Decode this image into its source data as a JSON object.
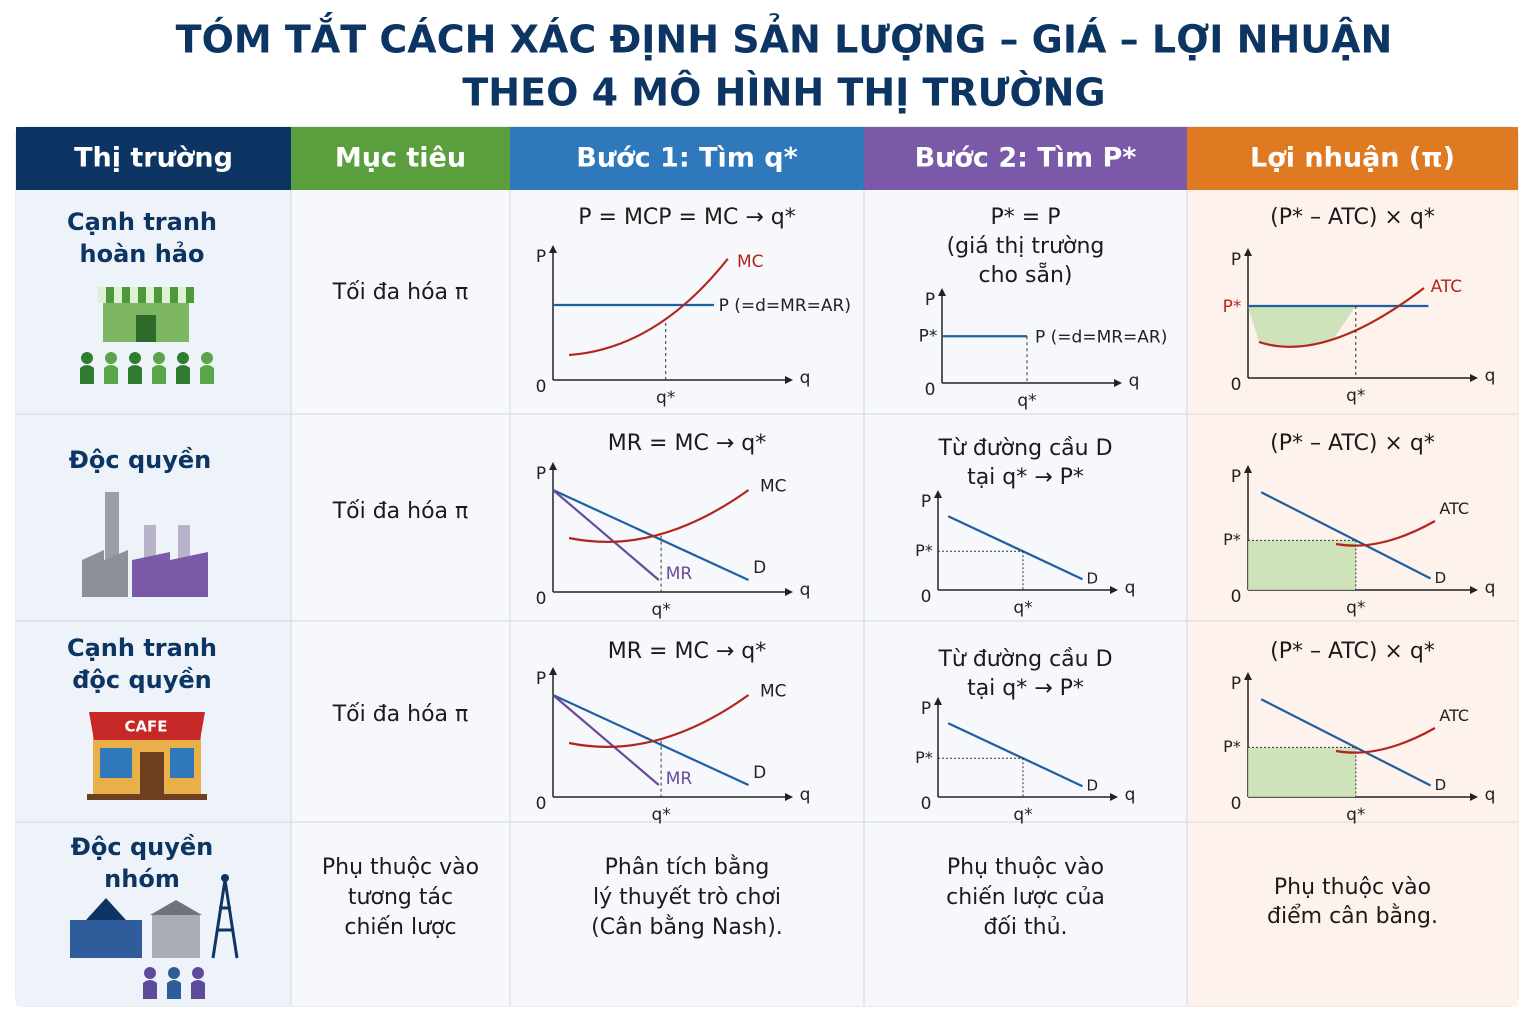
{
  "title": [
    "TÓM TẮT CÁCH XÁC ĐỊNH SẢN LƯỢNG – GIÁ – LỢI NHUẬN",
    "THEO 4 MÔ HÌNH THỊ TRƯỜNG"
  ],
  "header": [
    "Thị trường",
    "Mục tiêu",
    "Bước 1: Tìm q*",
    "Bước 2: Tìm P*",
    "Lợi nhuận (π)"
  ],
  "rows": [
    {
      "market": [
        "Cạnh tranh",
        "hoàn hảo"
      ],
      "goal": [
        "Tối đa hóa π"
      ],
      "step1": {
        "text": [
          "P = MCP = MC → q*"
        ],
        "graph": {
          "kind": "flat-mc",
          "labels": {
            "p": "P",
            "origin": "0",
            "q": "q",
            "qstar": "q*",
            "mc": "MC",
            "price": "P (=d=MR=AR)"
          }
        }
      },
      "step2": {
        "text": [
          "P* = P",
          "(giá thị trường",
          "cho sẵn)"
        ],
        "graph": {
          "kind": "flat",
          "labels": {
            "p": "P",
            "origin": "0",
            "q": "q",
            "qstar": "q*",
            "pstar": "P*",
            "price": "P (=d=MR=AR)"
          }
        }
      },
      "profit": {
        "text": [
          "(P* – ATC) × q*"
        ],
        "graph": {
          "kind": "flat-atc",
          "labels": {
            "p": "P",
            "origin": "0",
            "q": "q",
            "qstar": "q*",
            "pstar": "P*",
            "atc": "ATC"
          }
        }
      }
    },
    {
      "market": [
        "Độc quyền"
      ],
      "goal": [
        "Tối đa hóa π"
      ],
      "step1": {
        "text": [
          "MR = MC → q*"
        ],
        "graph": {
          "kind": "mr-mc",
          "labels": {
            "p": "P",
            "origin": "0",
            "q": "q",
            "qstar": "q*",
            "mc": "MC",
            "mr": "MR",
            "d": "D"
          }
        }
      },
      "step2": {
        "text": [
          "Từ đường cầu D",
          "tại q* → P*"
        ],
        "graph": {
          "kind": "demand",
          "labels": {
            "p": "P",
            "origin": "0",
            "q": "q",
            "qstar": "q*",
            "pstar": "P*",
            "d": "D"
          }
        }
      },
      "profit": {
        "text": [
          "(P* – ATC) × q*"
        ],
        "graph": {
          "kind": "demand-atc",
          "labels": {
            "p": "P",
            "origin": "0",
            "q": "q",
            "qstar": "q*",
            "pstar": "P*",
            "atc": "ATC",
            "d": "D"
          }
        }
      }
    },
    {
      "market": [
        "Cạnh tranh",
        "độc quyền"
      ],
      "icon_label": "CAFE",
      "goal": [
        "Tối đa hóa π"
      ],
      "step1": {
        "text": [
          "MR = MC  → q*"
        ],
        "graph": {
          "kind": "mr-mc",
          "labels": {
            "p": "P",
            "origin": "0",
            "q": "q",
            "qstar": "q*",
            "mc": "MC",
            "mr": "MR",
            "d": "D"
          }
        }
      },
      "step2": {
        "text": [
          "Từ đường cầu D",
          "tại q* → P*"
        ],
        "graph": {
          "kind": "demand",
          "labels": {
            "p": "P",
            "origin": "0",
            "q": "q",
            "qstar": "q*",
            "pstar": "P*",
            "d": "D"
          }
        }
      },
      "profit": {
        "text": [
          "(P* – ATC) × q*"
        ],
        "graph": {
          "kind": "demand-atc",
          "labels": {
            "p": "P",
            "origin": "0",
            "q": "q",
            "qstar": "q*",
            "pstar": "P*",
            "atc": "ATC",
            "d": "D"
          }
        }
      }
    },
    {
      "market": [
        "Độc quyền",
        "nhóm"
      ],
      "goal": [
        "Phụ thuộc vào",
        "tương tác",
        "chiến lược"
      ],
      "step1": {
        "text": [
          "Phân tích bằng",
          "lý thuyết trò chơi",
          "(Cân bằng Nash)."
        ]
      },
      "step2": {
        "text": [
          "Phụ thuộc vào",
          "chiến lược của",
          "đối thủ."
        ]
      },
      "profit": {
        "text": [
          "Phụ thuộc vào",
          "điểm cân bằng."
        ]
      }
    }
  ]
}
